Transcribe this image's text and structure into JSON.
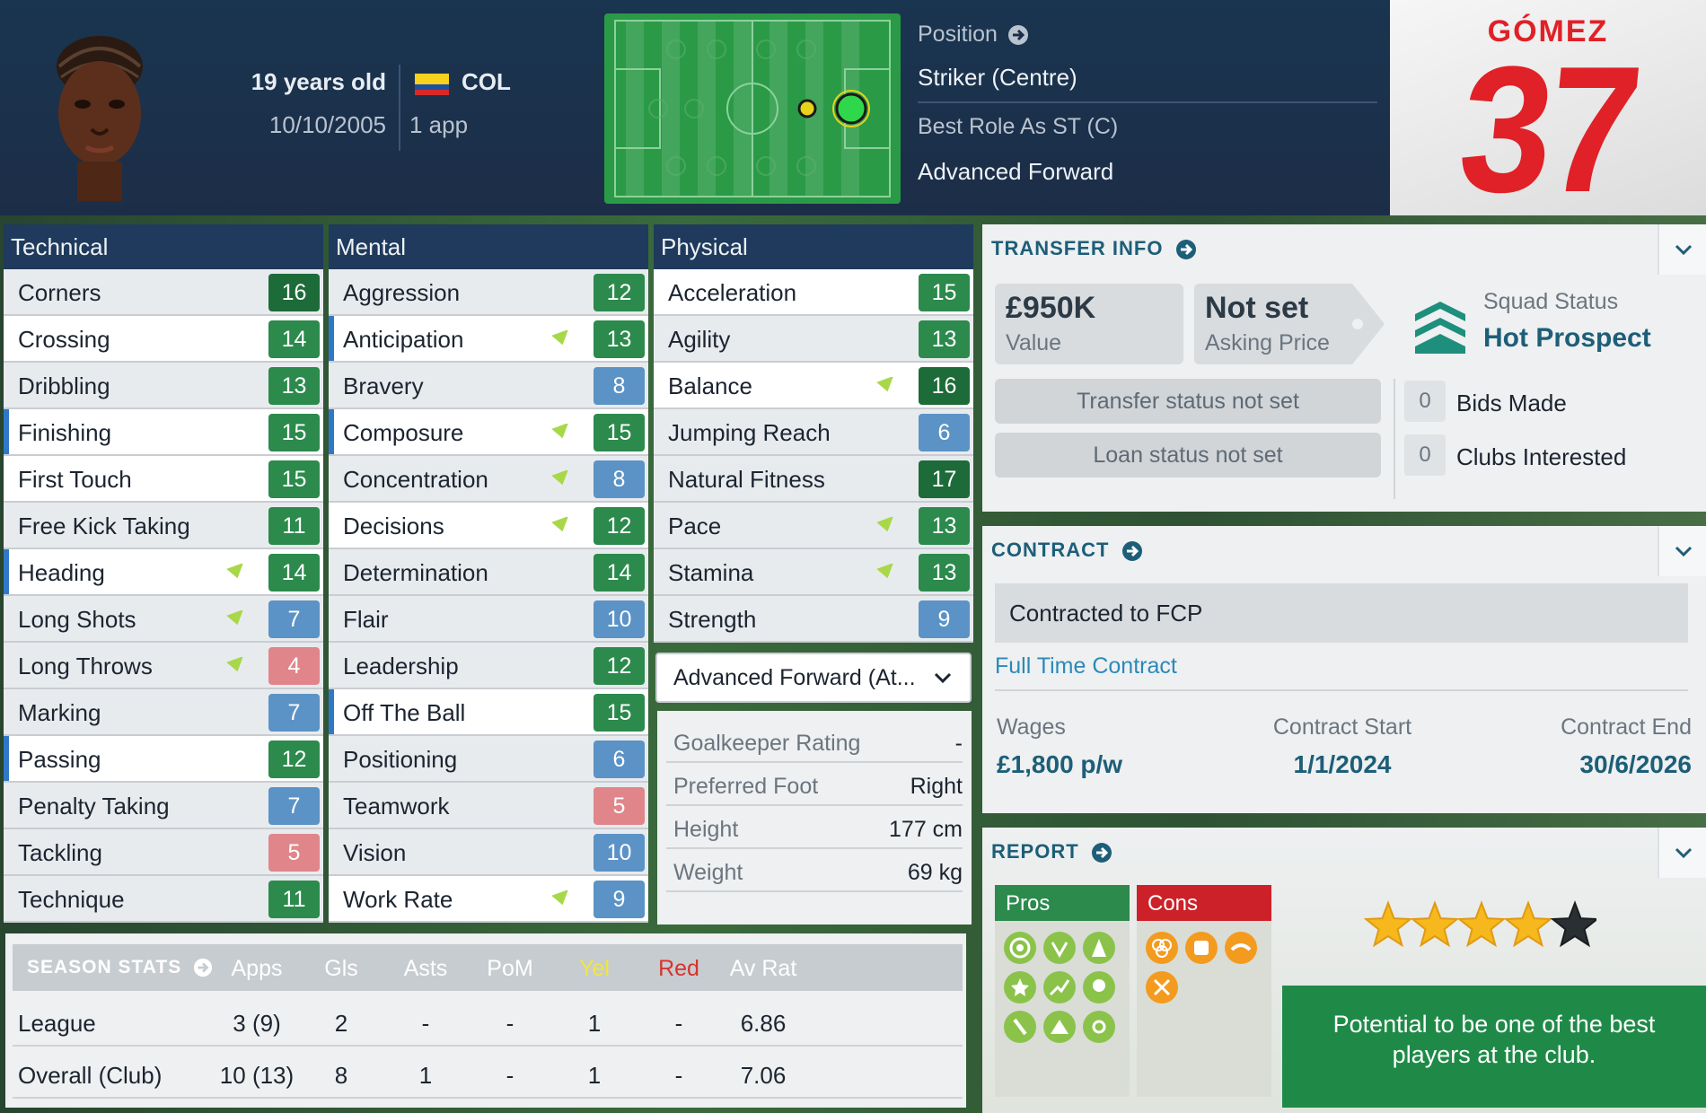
{
  "header": {
    "age": "19 years old",
    "dob": "10/10/2005",
    "nationality": "COL",
    "apps": "1 app",
    "position_label": "Position",
    "position": "Striker (Centre)",
    "best_role_label": "Best Role As ST (C)",
    "best_role": "Advanced Forward",
    "shirt_name": "GÓMEZ",
    "shirt_number": "37"
  },
  "technical": {
    "title": "Technical",
    "attrs": [
      {
        "name": "Corners",
        "value": "16",
        "color": "dgreen"
      },
      {
        "name": "Crossing",
        "value": "14",
        "color": "green"
      },
      {
        "name": "Dribbling",
        "value": "13",
        "color": "green"
      },
      {
        "name": "Finishing",
        "value": "15",
        "color": "green"
      },
      {
        "name": "First Touch",
        "value": "15",
        "color": "green"
      },
      {
        "name": "Free Kick Taking",
        "value": "11",
        "color": "green"
      },
      {
        "name": "Heading",
        "value": "14",
        "color": "green",
        "arrow": true
      },
      {
        "name": "Long Shots",
        "value": "7",
        "color": "blue",
        "arrow": true
      },
      {
        "name": "Long Throws",
        "value": "4",
        "color": "pink",
        "arrow": true
      },
      {
        "name": "Marking",
        "value": "7",
        "color": "blue"
      },
      {
        "name": "Passing",
        "value": "12",
        "color": "green"
      },
      {
        "name": "Penalty Taking",
        "value": "7",
        "color": "blue"
      },
      {
        "name": "Tackling",
        "value": "5",
        "color": "pink"
      },
      {
        "name": "Technique",
        "value": "11",
        "color": "green"
      }
    ]
  },
  "mental": {
    "title": "Mental",
    "attrs": [
      {
        "name": "Aggression",
        "value": "12",
        "color": "green"
      },
      {
        "name": "Anticipation",
        "value": "13",
        "color": "green",
        "arrow": true
      },
      {
        "name": "Bravery",
        "value": "8",
        "color": "blue"
      },
      {
        "name": "Composure",
        "value": "15",
        "color": "green",
        "arrow": true
      },
      {
        "name": "Concentration",
        "value": "8",
        "color": "blue",
        "arrow": true
      },
      {
        "name": "Decisions",
        "value": "12",
        "color": "green",
        "arrow": true
      },
      {
        "name": "Determination",
        "value": "14",
        "color": "green"
      },
      {
        "name": "Flair",
        "value": "10",
        "color": "blue"
      },
      {
        "name": "Leadership",
        "value": "12",
        "color": "green"
      },
      {
        "name": "Off The Ball",
        "value": "15",
        "color": "green"
      },
      {
        "name": "Positioning",
        "value": "6",
        "color": "blue"
      },
      {
        "name": "Teamwork",
        "value": "5",
        "color": "pink"
      },
      {
        "name": "Vision",
        "value": "10",
        "color": "blue"
      },
      {
        "name": "Work Rate",
        "value": "9",
        "color": "blue",
        "arrow": true
      }
    ]
  },
  "physical": {
    "title": "Physical",
    "attrs": [
      {
        "name": "Acceleration",
        "value": "15",
        "color": "green"
      },
      {
        "name": "Agility",
        "value": "13",
        "color": "green"
      },
      {
        "name": "Balance",
        "value": "16",
        "color": "dgreen",
        "arrow": true
      },
      {
        "name": "Jumping Reach",
        "value": "6",
        "color": "blue"
      },
      {
        "name": "Natural Fitness",
        "value": "17",
        "color": "dgreen"
      },
      {
        "name": "Pace",
        "value": "13",
        "color": "green",
        "arrow": true
      },
      {
        "name": "Stamina",
        "value": "13",
        "color": "green",
        "arrow": true
      },
      {
        "name": "Strength",
        "value": "9",
        "color": "blue"
      }
    ]
  },
  "role_dropdown": "Advanced Forward (At...",
  "info": [
    {
      "k": "Goalkeeper Rating",
      "v": "-"
    },
    {
      "k": "Preferred Foot",
      "v": "Right"
    },
    {
      "k": "Height",
      "v": "177 cm"
    },
    {
      "k": "Weight",
      "v": "69 kg"
    }
  ],
  "season_stats": {
    "title": "SEASON STATS",
    "columns": [
      "Apps",
      "Gls",
      "Asts",
      "PoM",
      "Yel",
      "Red",
      "Av Rat"
    ],
    "rows": [
      {
        "label": "League",
        "cells": [
          "3 (9)",
          "2",
          "-",
          "-",
          "1",
          "-",
          "6.86"
        ]
      },
      {
        "label": "Overall (Club)",
        "cells": [
          "10 (13)",
          "8",
          "1",
          "-",
          "1",
          "-",
          "7.06"
        ]
      }
    ]
  },
  "transfer": {
    "title": "TRANSFER INFO",
    "value": "£950K",
    "value_label": "Value",
    "asking": "Not set",
    "asking_label": "Asking Price",
    "squad_label": "Squad Status",
    "squad": "Hot Prospect",
    "transfer_status": "Transfer status not set",
    "loan_status": "Loan status not set",
    "bids": "0",
    "bids_label": "Bids Made",
    "clubs": "0",
    "clubs_label": "Clubs Interested"
  },
  "contract": {
    "title": "CONTRACT",
    "club": "Contracted to FCP",
    "type": "Full Time Contract",
    "wages_label": "Wages",
    "wages": "£1,800 p/w",
    "start_label": "Contract Start",
    "start": "1/1/2024",
    "end_label": "Contract End",
    "end": "30/6/2026"
  },
  "report": {
    "title": "REPORT",
    "pros": "Pros",
    "cons": "Cons",
    "stars": 4,
    "stars_max": 5,
    "potential": "Potential to be one of the best players at the club."
  },
  "colors": {
    "green": "#2b8a4c",
    "dgreen": "#1c6b38",
    "blue": "#5b93c6",
    "pink": "#e0868a",
    "accent": "#1d5e78",
    "shirt": "#e02127"
  }
}
